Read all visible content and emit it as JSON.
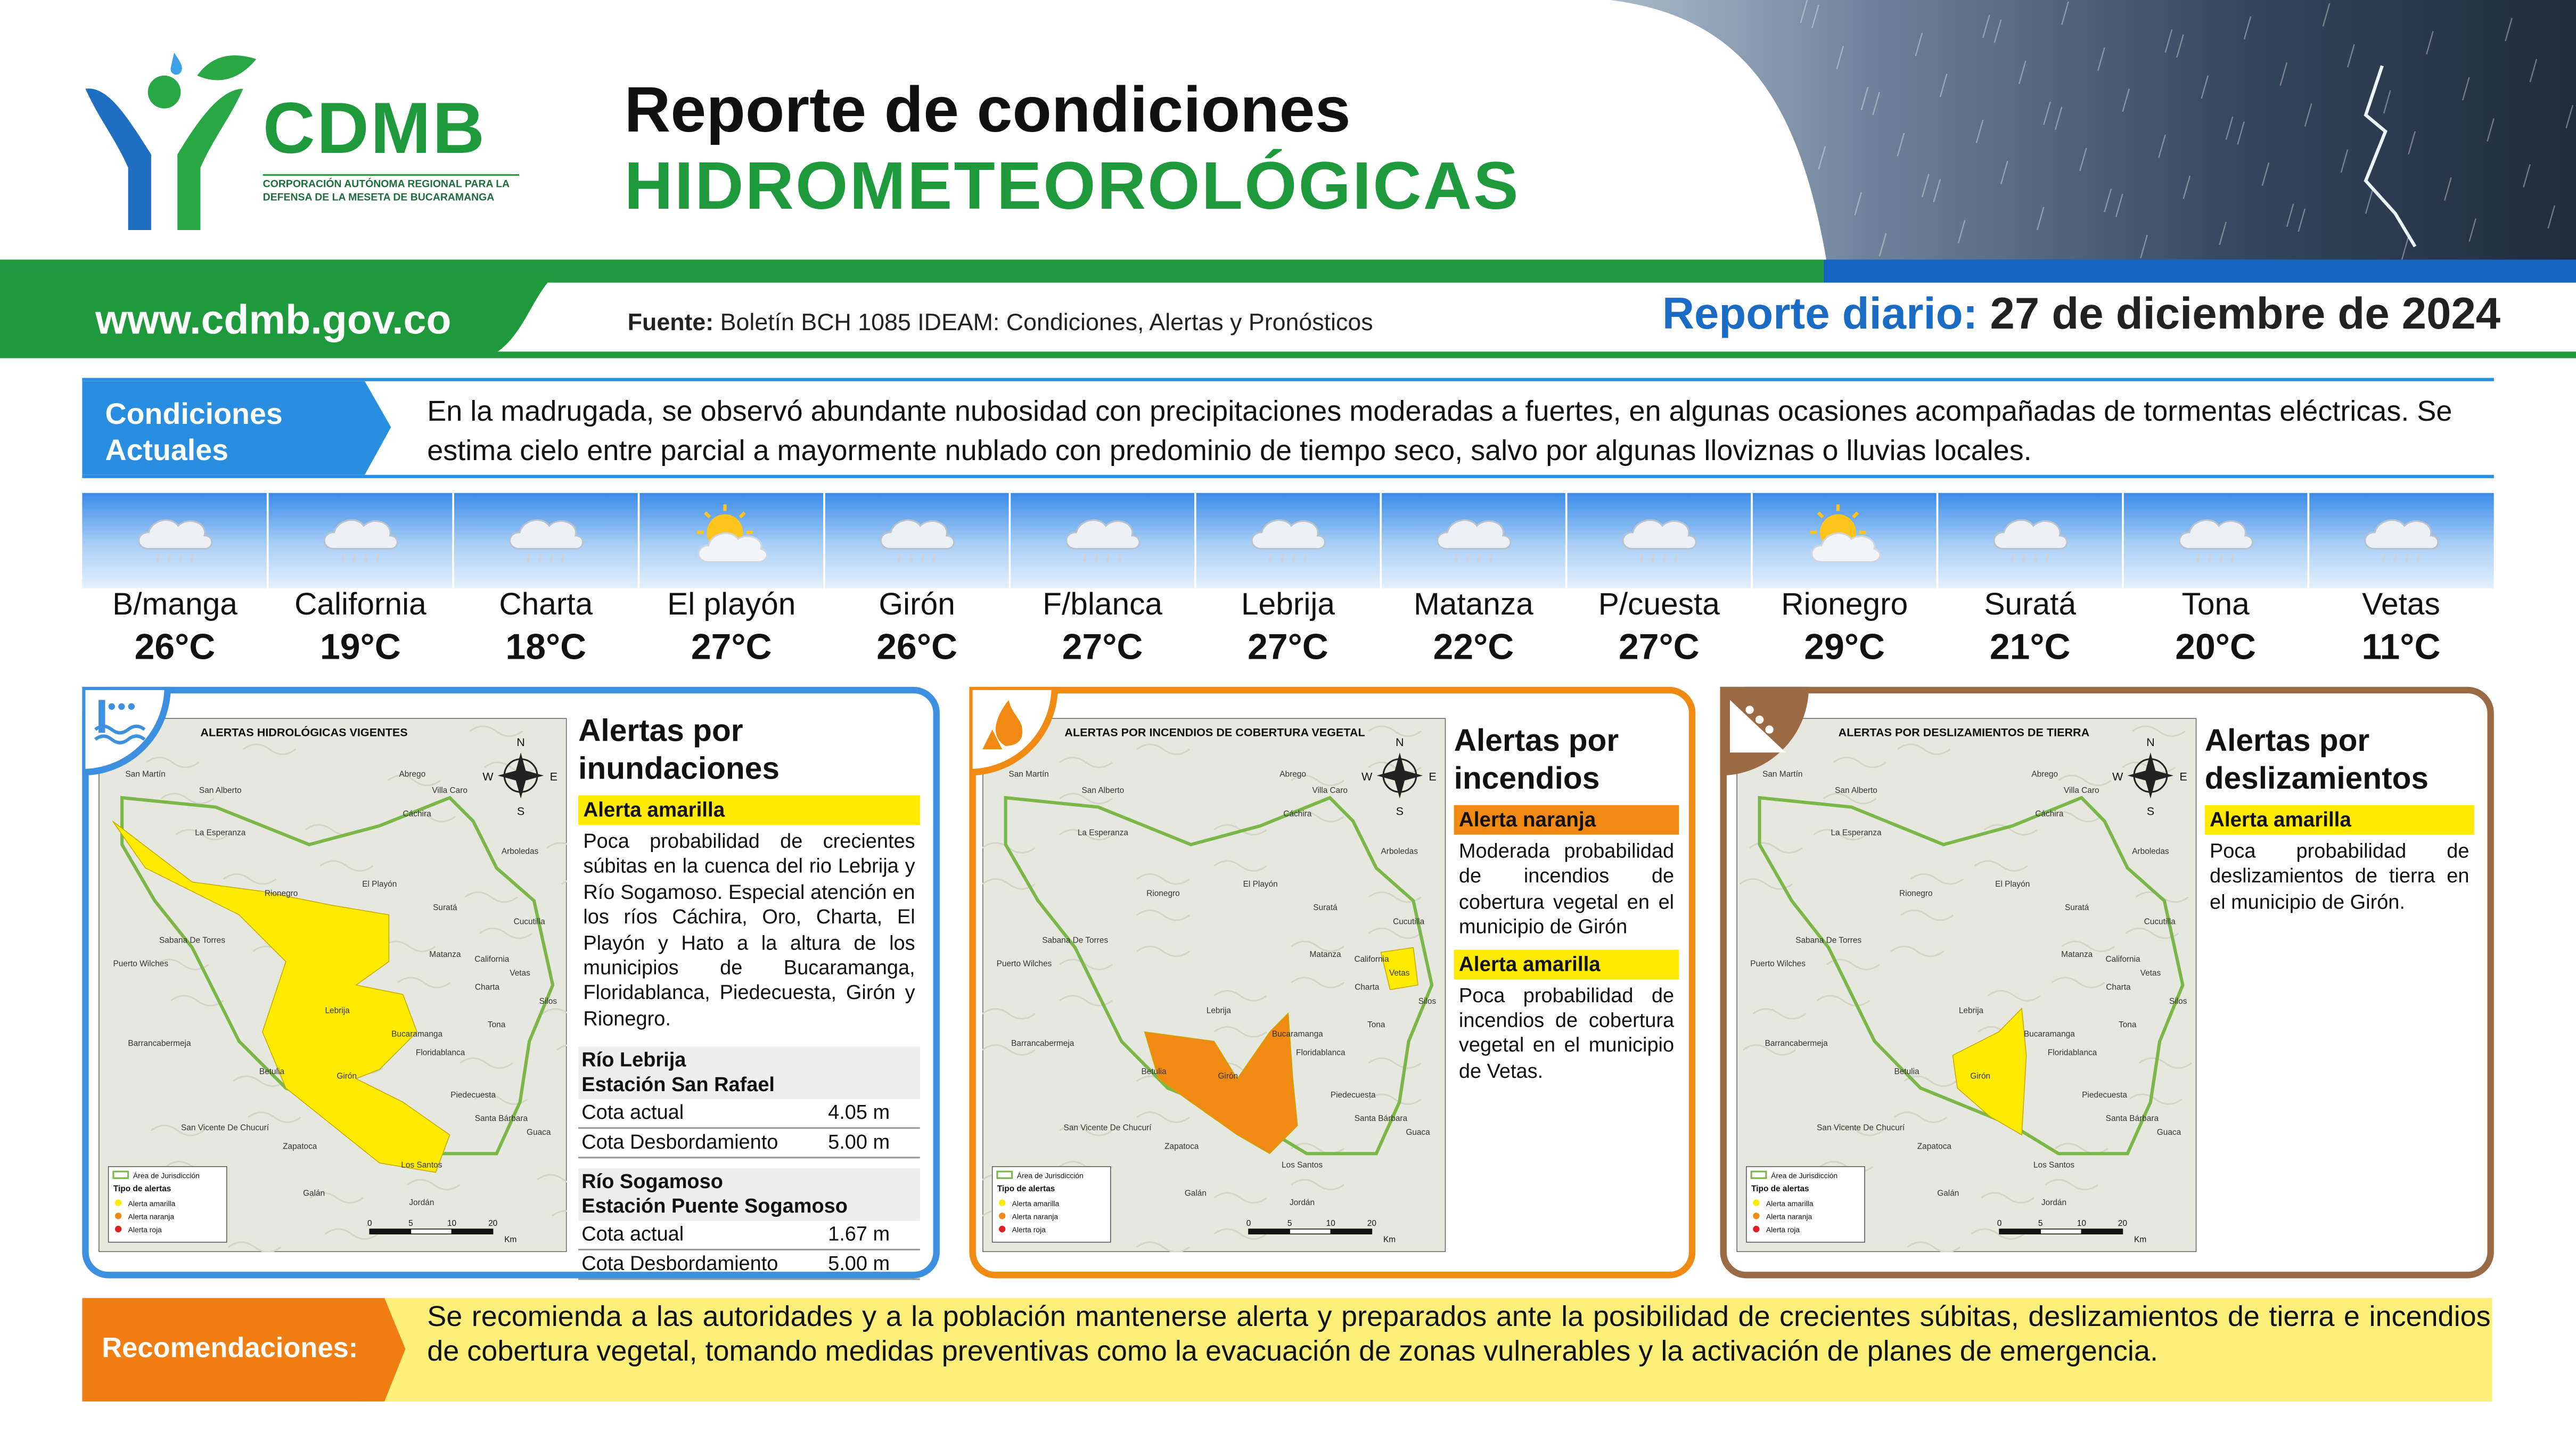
{
  "header": {
    "logo_name": "CDMB",
    "logo_sub": "CORPORACIÓN AUTÓNOMA REGIONAL PARA LA DEFENSA DE LA MESETA DE BUCARAMANGA",
    "title_line1": "Reporte de condiciones",
    "title_line2": "HIDROMETEOROLÓGICAS",
    "website": "www.cdmb.gov.co",
    "source_label": "Fuente:",
    "source_text": "Boletín BCH 1085 IDEAM: Condiciones, Alertas y Pronósticos",
    "report_label": "Reporte diario:",
    "report_date": "27 de diciembre de 2024"
  },
  "conditions": {
    "label": "Condiciones Actuales",
    "text": "En la madrugada, se observó abundante nubosidad con precipitaciones moderadas a fuertes, en algunas ocasiones acompañadas de tormentas eléctricas. Se estima cielo entre parcial a mayormente nublado con predominio de tiempo seco, salvo por algunas lloviznas o lluvias locales."
  },
  "weather": [
    {
      "city": "B/manga",
      "temp": "26°C",
      "icon": "rain"
    },
    {
      "city": "California",
      "temp": "19°C",
      "icon": "rain"
    },
    {
      "city": "Charta",
      "temp": "18°C",
      "icon": "rain"
    },
    {
      "city": "El playón",
      "temp": "27°C",
      "icon": "sun"
    },
    {
      "city": "Girón",
      "temp": "26°C",
      "icon": "rain"
    },
    {
      "city": "F/blanca",
      "temp": "27°C",
      "icon": "rain"
    },
    {
      "city": "Lebrija",
      "temp": "27°C",
      "icon": "rain"
    },
    {
      "city": "Matanza",
      "temp": "22°C",
      "icon": "rain"
    },
    {
      "city": "P/cuesta",
      "temp": "27°C",
      "icon": "rain"
    },
    {
      "city": "Rionegro",
      "temp": "29°C",
      "icon": "sun"
    },
    {
      "city": "Suratá",
      "temp": "21°C",
      "icon": "rain"
    },
    {
      "city": "Tona",
      "temp": "20°C",
      "icon": "rain"
    },
    {
      "city": "Vetas",
      "temp": "11°C",
      "icon": "rain"
    }
  ],
  "panels": [
    {
      "color": "#3d8fe0",
      "map_title": "ALERTAS HIDROLÓGICAS VIGENTES",
      "heading": "Alertas por inundaciones",
      "alerts": [
        {
          "level": "Alerta amarilla",
          "color": "#ffeb00",
          "text": "Poca probabilidad de crecientes súbitas en la cuenca del rio Lebrija y Río Sogamoso. Especial atención en los ríos Cáchira, Oro, Charta, El Playón y Hato a la altura de los municipios de Bucaramanga, Floridablanca, Piedecuesta, Girón y Rionegro."
        }
      ],
      "stations": [
        {
          "river": "Río Lebrija",
          "station": "Estación San Rafael",
          "rows": [
            [
              "Cota actual",
              "4.05 m"
            ],
            [
              "Cota Desbordamiento",
              "5.00 m"
            ]
          ]
        },
        {
          "river": "Río Sogamoso",
          "station": "Estación Puente Sogamoso",
          "rows": [
            [
              "Cota actual",
              "1.67 m"
            ],
            [
              "Cota Desbordamiento",
              "5.00 m"
            ]
          ]
        }
      ]
    },
    {
      "color": "#f08a12",
      "map_title": "ALERTAS POR INCENDIOS DE COBERTURA VEGETAL",
      "heading": "Alertas por incendios",
      "alerts": [
        {
          "level": "Alerta naranja",
          "color": "#f08a12",
          "text": "Moderada probabilidad de incendios de cobertura vegetal en el municipio de Girón"
        },
        {
          "level": "Alerta amarilla",
          "color": "#ffeb00",
          "text": "Poca probabilidad de incendios de cobertura vegetal en el municipio de Vetas."
        }
      ],
      "stations": []
    },
    {
      "color": "#9a6a44",
      "map_title": "ALERTAS POR DESLIZAMIENTOS DE TIERRA",
      "heading": "Alertas por deslizamientos",
      "alerts": [
        {
          "level": "Alerta amarilla",
          "color": "#ffeb00",
          "text": "Poca probabilidad de deslizamientos de tierra en el municipio de Girón."
        }
      ],
      "stations": []
    }
  ],
  "map": {
    "towns": [
      "San Martín",
      "San Alberto",
      "Abrego",
      "Villa Caro",
      "Cáchira",
      "La Esperanza",
      "Arboledas",
      "Rionegro",
      "El Playón",
      "Suratá",
      "Cucutilla",
      "Sabana De Torres",
      "Puerto Wilches",
      "Matanza",
      "California",
      "Vetas",
      "Charta",
      "Silos",
      "Lebrija",
      "Tona",
      "Bucaramanga",
      "Barrancabermeja",
      "Floridablanca",
      "Betulia",
      "Girón",
      "Piedecuesta",
      "San Vicente De Chucurí",
      "Santa Bárbara",
      "Guaca",
      "Zapatoca",
      "Los Santos",
      "Galán",
      "Jordán"
    ],
    "legend": {
      "jurisdiction": "Área de Jurisdicción",
      "type_title": "Tipo de alertas",
      "items": [
        {
          "label": "Alerta amarilla",
          "color": "#ffeb00"
        },
        {
          "label": "Alerta naranja",
          "color": "#f08a12"
        },
        {
          "label": "Alerta roja",
          "color": "#e02020"
        }
      ]
    },
    "scale": {
      "ticks": [
        "0",
        "5",
        "10",
        "20"
      ],
      "unit": "Km"
    },
    "compass": {
      "n": "N",
      "s": "S",
      "e": "E",
      "w": "W"
    }
  },
  "recommendations": {
    "label": "Recomendaciones:",
    "text": "Se recomienda a las autoridades y a la población mantenerse alerta y preparados ante la posibilidad de crecientes súbitas, deslizamientos de tierra e incendios de cobertura vegetal, tomando medidas preventivas como la evacuación de zonas vulnerables y la activación de planes de emergencia."
  }
}
